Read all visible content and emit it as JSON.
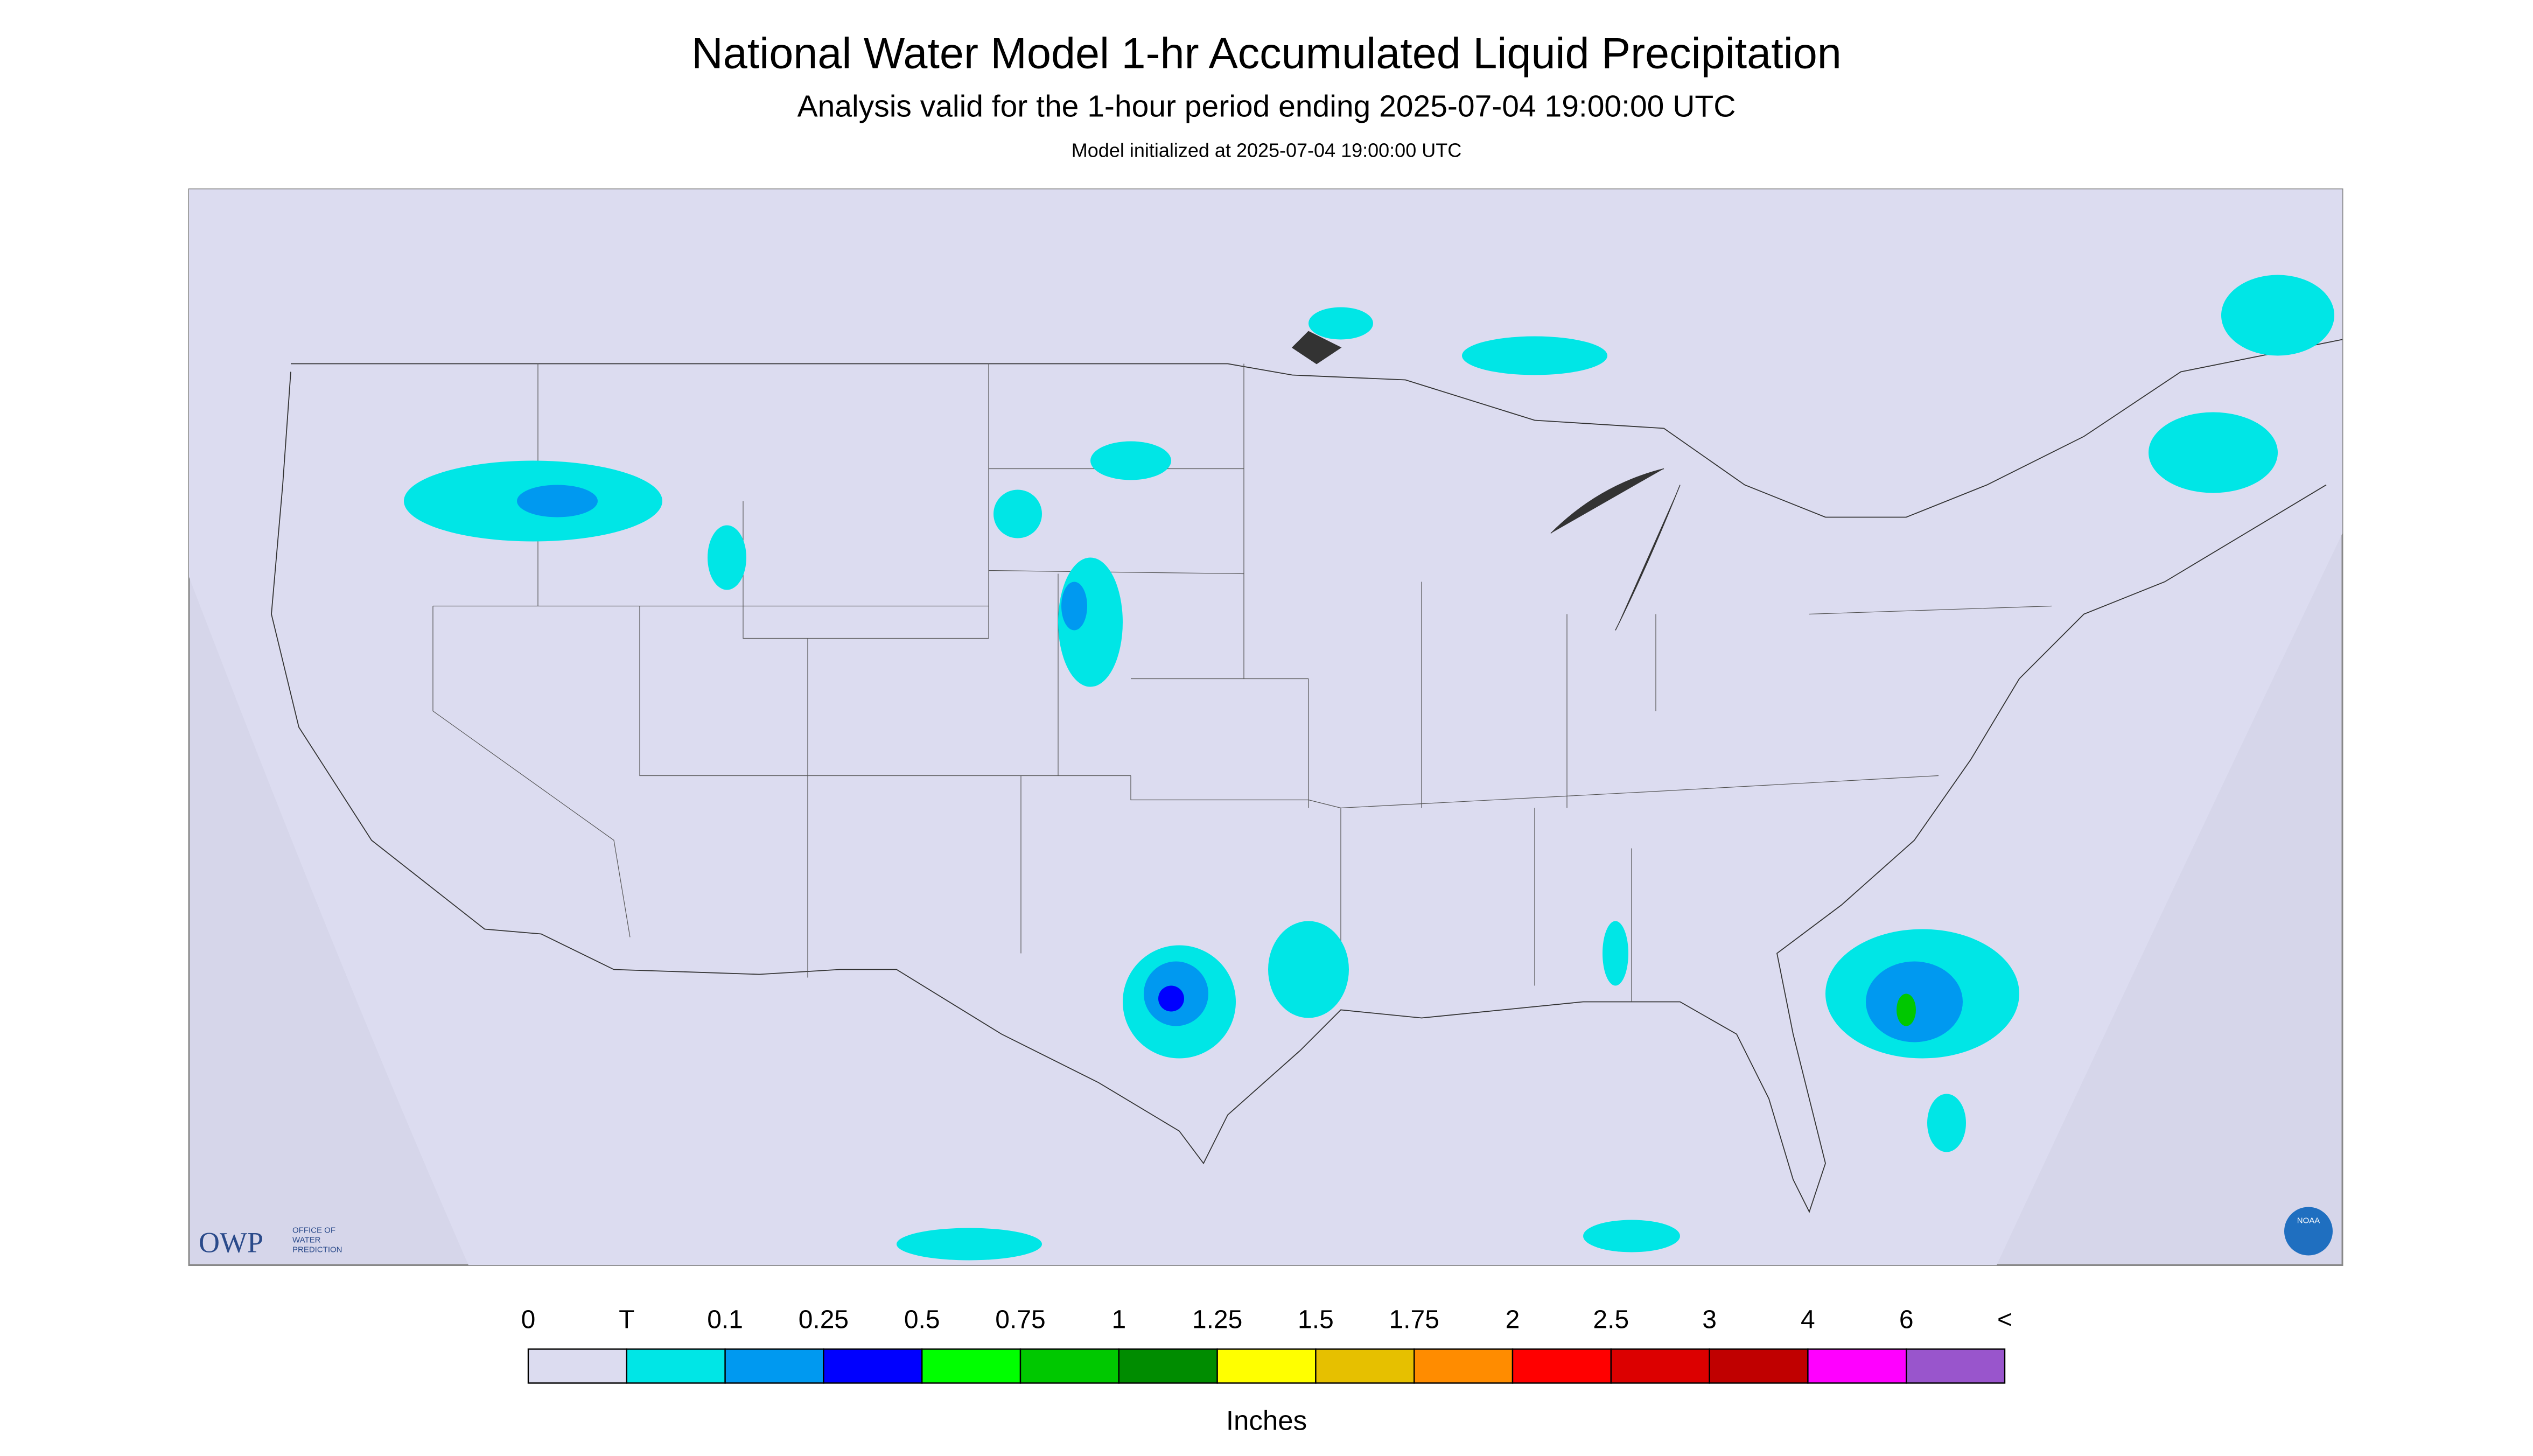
{
  "header": {
    "title": "National Water Model 1-hr Accumulated Liquid Precipitation",
    "subtitle": "Analysis valid for the 1-hour period ending 2025-07-04 19:00:00 UTC",
    "init": "Model initialized at 2025-07-04 19:00:00 UTC"
  },
  "legend": {
    "labels": [
      "0",
      "T",
      "0.1",
      "0.25",
      "0.5",
      "0.75",
      "1",
      "1.25",
      "1.5",
      "1.75",
      "2",
      "2.5",
      "3",
      "4",
      "6",
      "<"
    ],
    "colors": [
      "#dcdcf0",
      "#00e6e6",
      "#0099f0",
      "#0000ff",
      "#00ff00",
      "#00c800",
      "#008c00",
      "#ffff00",
      "#e6c000",
      "#ff8c00",
      "#ff0000",
      "#dc0000",
      "#c00000",
      "#ff00ff",
      "#9955cc"
    ],
    "unit": "Inches"
  },
  "logo": {
    "owp": "OWP",
    "owp_text": [
      "OFFICE OF",
      "WATER",
      "PREDICTION"
    ],
    "noaa": "NOAA"
  }
}
